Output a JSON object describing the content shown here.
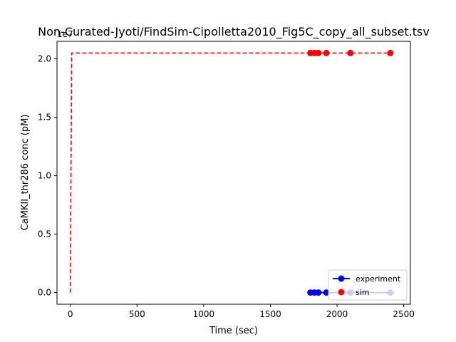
{
  "chart_data": {
    "type": "line",
    "title": "Non-Curated-Jyoti/FindSim-Cipolletta2010_Fig5C_copy_all_subset.tsv",
    "xlabel": "Time (sec)",
    "ylabel": "CaMKII_thr286 conc (pM)",
    "y_offset_label": "1e7",
    "xlim": [
      -100,
      2550
    ],
    "ylim": [
      -0.1,
      2.15
    ],
    "y_unit_scale": "1e7",
    "xticks": [
      0,
      500,
      1000,
      1500,
      2000,
      2500
    ],
    "xtick_labels": [
      "0",
      "500",
      "1000",
      "1500",
      "2000",
      "2500"
    ],
    "yticks": [
      0.0,
      0.5,
      1.0,
      1.5,
      2.0
    ],
    "ytick_labels": [
      "0.0",
      "0.5",
      "1.0",
      "1.5",
      "2.0"
    ],
    "grid": false,
    "legend_position": "lower-right",
    "legend": [
      {
        "label": "experiment",
        "color": "#0000ff",
        "style": "line-marker"
      },
      {
        "label": "sim",
        "color": "#ff0000",
        "style": "marker"
      }
    ],
    "series": [
      {
        "name": "experiment",
        "color": "#0000ff",
        "style": "solid-line-markers",
        "x": [
          1800,
          1830,
          1860,
          1920,
          2100,
          2400
        ],
        "y": [
          0,
          0,
          0,
          0,
          0,
          0
        ]
      },
      {
        "name": "sim",
        "color": "#ff0000",
        "style": "markers",
        "x": [
          1800,
          1830,
          1860,
          1920,
          2100,
          2400
        ],
        "y": [
          2.05,
          2.05,
          2.05,
          2.05,
          2.05,
          2.05
        ]
      },
      {
        "name": "",
        "color": "#ff0000",
        "style": "dashed-line",
        "x": [
          0,
          10,
          2400
        ],
        "y": [
          0,
          2.05,
          2.05
        ]
      }
    ]
  }
}
